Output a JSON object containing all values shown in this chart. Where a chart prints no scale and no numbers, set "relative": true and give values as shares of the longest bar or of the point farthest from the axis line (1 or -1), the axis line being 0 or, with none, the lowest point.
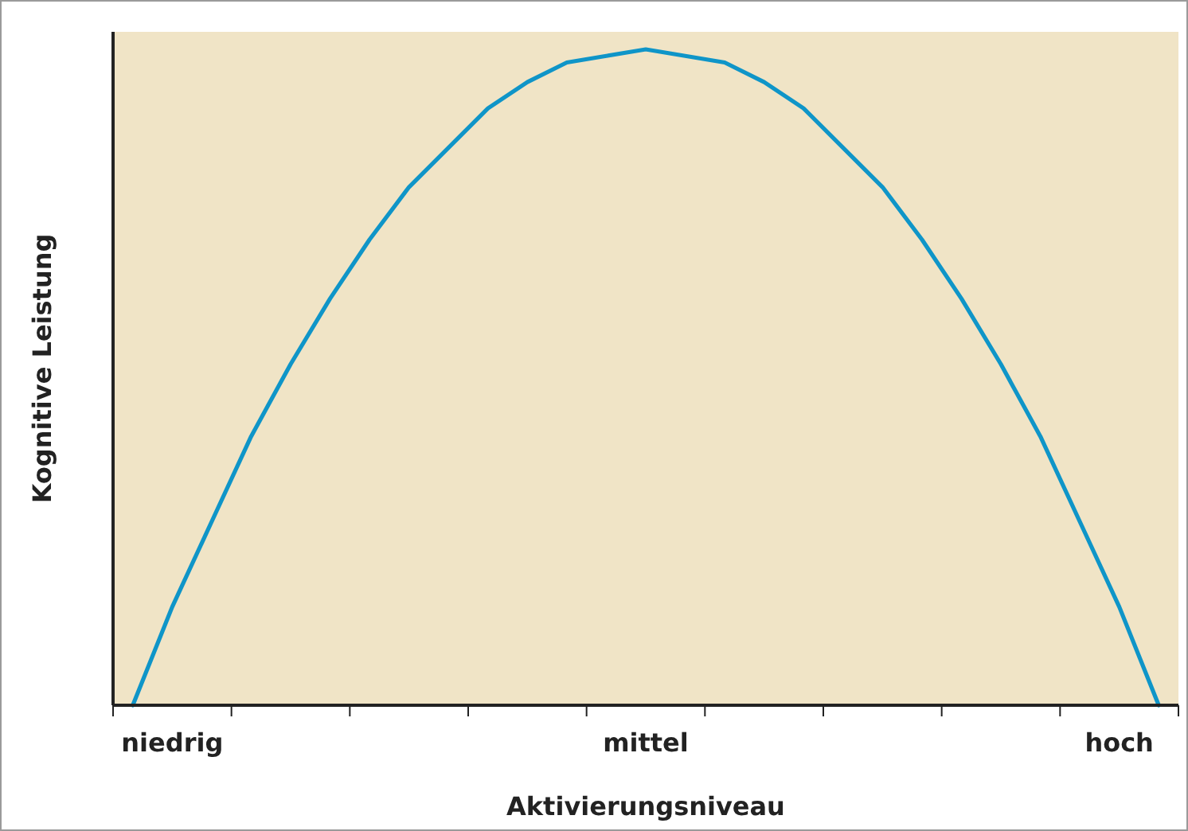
{
  "chart_data": {
    "type": "line",
    "xlabel": "Aktivierungsniveau",
    "ylabel": "Kognitive Leistung",
    "relative": true,
    "categories": [
      null,
      "niedrig",
      null,
      null,
      null,
      null,
      null,
      null,
      null,
      null,
      null,
      null,
      null,
      "mittel",
      null,
      null,
      null,
      null,
      null,
      null,
      null,
      null,
      null,
      null,
      null,
      "hoch",
      null
    ],
    "series": [
      {
        "color": "#0f95c8",
        "values": [
          0,
          0.15,
          0.28,
          0.41,
          0.52,
          0.62,
          0.71,
          0.79,
          0.85,
          0.91,
          0.95,
          0.98,
          0.99,
          1,
          0.99,
          0.98,
          0.95,
          0.91,
          0.85,
          0.79,
          0.71,
          0.62,
          0.52,
          0.41,
          0.28,
          0.15,
          0
        ]
      }
    ]
  }
}
